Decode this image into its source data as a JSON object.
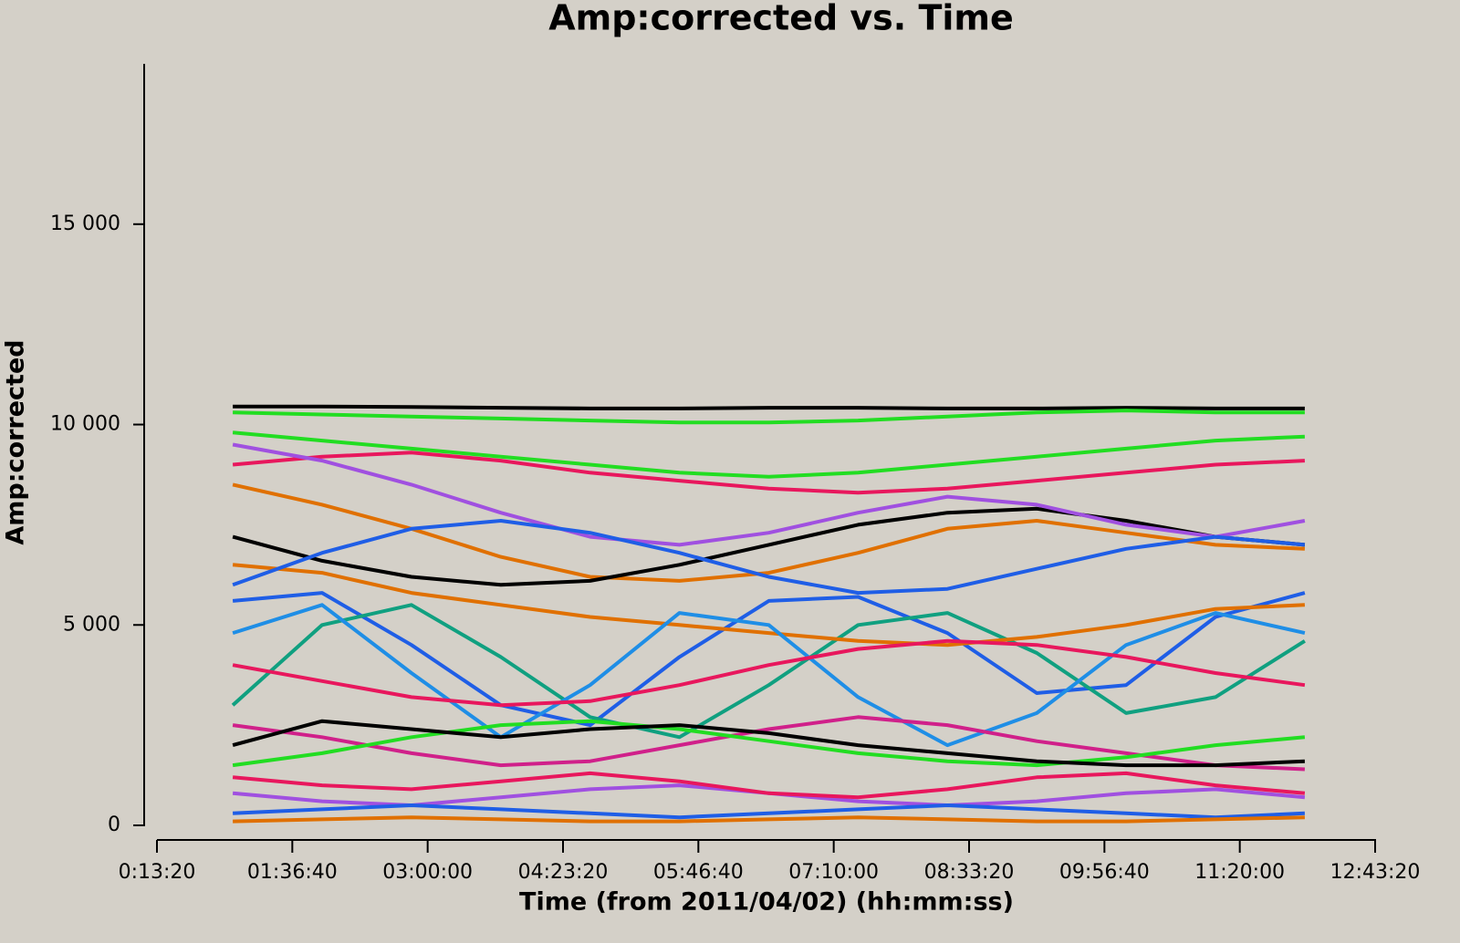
{
  "chart_data": {
    "type": "line",
    "title": "Amp:corrected vs. Time",
    "x_label": "Time (from 2011/04/02) (hh:mm:ss)",
    "y_label": "Amp:corrected",
    "xlim": [
      800,
      45800
    ],
    "xticks": [
      {
        "value": 800,
        "label": "0:13:20"
      },
      {
        "value": 5800,
        "label": "01:36:40"
      },
      {
        "value": 10800,
        "label": "03:00:00"
      },
      {
        "value": 15800,
        "label": "04:23:20"
      },
      {
        "value": 20800,
        "label": "05:46:40"
      },
      {
        "value": 25800,
        "label": "07:10:00"
      },
      {
        "value": 30800,
        "label": "08:33:20"
      },
      {
        "value": 35800,
        "label": "09:56:40"
      },
      {
        "value": 40800,
        "label": "11:20:00"
      },
      {
        "value": 45800,
        "label": "12:43:20"
      }
    ],
    "ylim": [
      0,
      19000
    ],
    "yticks": [
      0,
      {
        "value": 5000,
        "label": "5 000"
      },
      {
        "value": 10000,
        "label": "10 000"
      },
      {
        "value": 15000,
        "label": "15 000"
      }
    ],
    "x": [
      3600,
      6900,
      10200,
      13500,
      16800,
      20100,
      23400,
      26700,
      30000,
      33300,
      36600,
      39900,
      43200
    ],
    "series": [
      {
        "color": "#000000",
        "values": [
          10450,
          10450,
          10440,
          10420,
          10400,
          10400,
          10420,
          10420,
          10400,
          10400,
          10420,
          10400,
          10400
        ]
      },
      {
        "color": "#22dd22",
        "values": [
          10300,
          10250,
          10200,
          10150,
          10100,
          10050,
          10050,
          10100,
          10200,
          10300,
          10350,
          10300,
          10300
        ]
      },
      {
        "color": "#e8175d",
        "values": [
          9000,
          9200,
          9300,
          9100,
          8800,
          8600,
          8400,
          8300,
          8400,
          8600,
          8800,
          9000,
          9100
        ]
      },
      {
        "color": "#e07000",
        "values": [
          8500,
          8000,
          7400,
          6700,
          6200,
          6100,
          6300,
          6800,
          7400,
          7600,
          7300,
          7000,
          6900
        ]
      },
      {
        "color": "#000000",
        "values": [
          7200,
          6600,
          6200,
          6000,
          6100,
          6500,
          7000,
          7500,
          7800,
          7900,
          7600,
          7200,
          7000
        ]
      },
      {
        "color": "#a050e0",
        "values": [
          9500,
          9100,
          8500,
          7800,
          7200,
          7000,
          7300,
          7800,
          8200,
          8000,
          7500,
          7200,
          7600
        ]
      },
      {
        "color": "#1f5ee6",
        "values": [
          5600,
          5800,
          4500,
          3000,
          2500,
          4200,
          5600,
          5700,
          4800,
          3300,
          3500,
          5200,
          5800
        ]
      },
      {
        "color": "#10a080",
        "values": [
          3000,
          5000,
          5500,
          4200,
          2700,
          2200,
          3500,
          5000,
          5300,
          4300,
          2800,
          3200,
          4600
        ]
      },
      {
        "color": "#e07000",
        "values": [
          6500,
          6300,
          5800,
          5500,
          5200,
          5000,
          4800,
          4600,
          4500,
          4700,
          5000,
          5400,
          5500
        ]
      },
      {
        "color": "#1f8ee6",
        "values": [
          4800,
          5500,
          3800,
          2200,
          3500,
          5300,
          5000,
          3200,
          2000,
          2800,
          4500,
          5300,
          4800
        ]
      },
      {
        "color": "#d0208a",
        "values": [
          2500,
          2200,
          1800,
          1500,
          1600,
          2000,
          2400,
          2700,
          2500,
          2100,
          1800,
          1500,
          1400
        ]
      },
      {
        "color": "#22dd22",
        "values": [
          1500,
          1800,
          2200,
          2500,
          2600,
          2400,
          2100,
          1800,
          1600,
          1500,
          1700,
          2000,
          2200
        ]
      },
      {
        "color": "#000000",
        "values": [
          2000,
          2600,
          2400,
          2200,
          2400,
          2500,
          2300,
          2000,
          1800,
          1600,
          1500,
          1500,
          1600
        ]
      },
      {
        "color": "#a050e0",
        "values": [
          800,
          600,
          500,
          700,
          900,
          1000,
          800,
          600,
          500,
          600,
          800,
          900,
          700
        ]
      },
      {
        "color": "#1f5ee6",
        "values": [
          300,
          400,
          500,
          400,
          300,
          200,
          300,
          400,
          500,
          400,
          300,
          200,
          300
        ]
      },
      {
        "color": "#e8175d",
        "values": [
          1200,
          1000,
          900,
          1100,
          1300,
          1100,
          800,
          700,
          900,
          1200,
          1300,
          1000,
          800
        ]
      },
      {
        "color": "#e07000",
        "values": [
          100,
          150,
          200,
          150,
          100,
          100,
          150,
          200,
          150,
          100,
          100,
          150,
          200
        ]
      },
      {
        "color": "#22dd22",
        "values": [
          9800,
          9600,
          9400,
          9200,
          9000,
          8800,
          8700,
          8800,
          9000,
          9200,
          9400,
          9600,
          9700
        ]
      },
      {
        "color": "#1f5ee6",
        "values": [
          6000,
          6800,
          7400,
          7600,
          7300,
          6800,
          6200,
          5800,
          5900,
          6400,
          6900,
          7200,
          7000
        ]
      },
      {
        "color": "#e8175d",
        "values": [
          4000,
          3600,
          3200,
          3000,
          3100,
          3500,
          4000,
          4400,
          4600,
          4500,
          4200,
          3800,
          3500
        ]
      }
    ]
  }
}
